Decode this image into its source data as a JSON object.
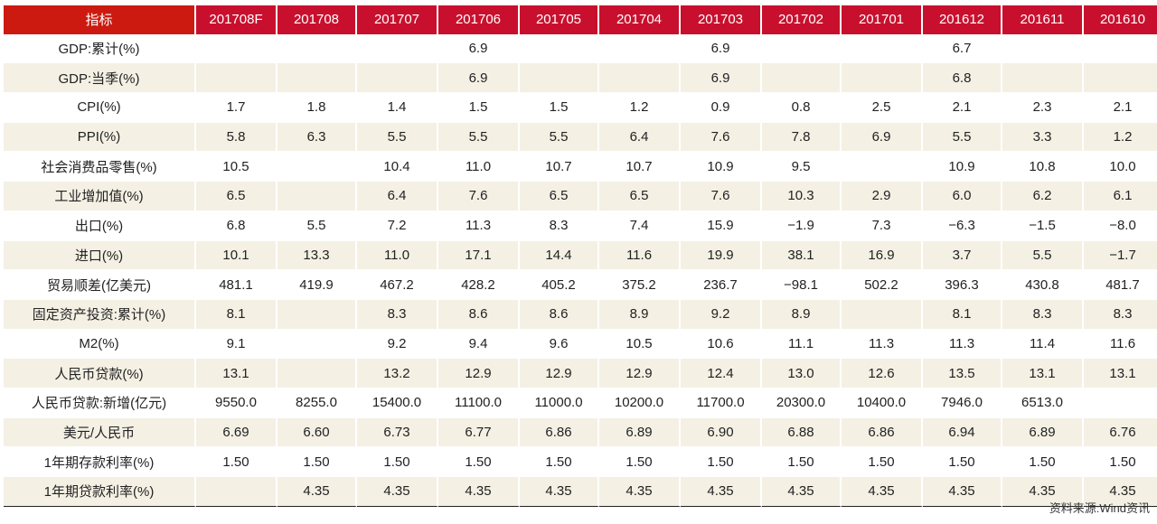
{
  "table": {
    "header_label": "指标",
    "columns": [
      "201708F",
      "201708",
      "201707",
      "201706",
      "201705",
      "201704",
      "201703",
      "201702",
      "201701",
      "201612",
      "201611",
      "201610"
    ],
    "rows": [
      {
        "label": "GDP:累计(%)",
        "values": [
          "",
          "",
          "",
          "6.9",
          "",
          "",
          "6.9",
          "",
          "",
          "6.7",
          "",
          ""
        ]
      },
      {
        "label": "GDP:当季(%)",
        "values": [
          "",
          "",
          "",
          "6.9",
          "",
          "",
          "6.9",
          "",
          "",
          "6.8",
          "",
          ""
        ]
      },
      {
        "label": "CPI(%)",
        "values": [
          "1.7",
          "1.8",
          "1.4",
          "1.5",
          "1.5",
          "1.2",
          "0.9",
          "0.8",
          "2.5",
          "2.1",
          "2.3",
          "2.1"
        ]
      },
      {
        "label": "PPI(%)",
        "values": [
          "5.8",
          "6.3",
          "5.5",
          "5.5",
          "5.5",
          "6.4",
          "7.6",
          "7.8",
          "6.9",
          "5.5",
          "3.3",
          "1.2"
        ]
      },
      {
        "label": "社会消费品零售(%)",
        "values": [
          "10.5",
          "",
          "10.4",
          "11.0",
          "10.7",
          "10.7",
          "10.9",
          "9.5",
          "",
          "10.9",
          "10.8",
          "10.0"
        ]
      },
      {
        "label": "工业增加值(%)",
        "values": [
          "6.5",
          "",
          "6.4",
          "7.6",
          "6.5",
          "6.5",
          "7.6",
          "10.3",
          "2.9",
          "6.0",
          "6.2",
          "6.1"
        ]
      },
      {
        "label": "出口(%)",
        "values": [
          "6.8",
          "5.5",
          "7.2",
          "11.3",
          "8.3",
          "7.4",
          "15.9",
          "−1.9",
          "7.3",
          "−6.3",
          "−1.5",
          "−8.0"
        ]
      },
      {
        "label": "进口(%)",
        "values": [
          "10.1",
          "13.3",
          "11.0",
          "17.1",
          "14.4",
          "11.6",
          "19.9",
          "38.1",
          "16.9",
          "3.7",
          "5.5",
          "−1.7"
        ]
      },
      {
        "label": "贸易顺差(亿美元)",
        "values": [
          "481.1",
          "419.9",
          "467.2",
          "428.2",
          "405.2",
          "375.2",
          "236.7",
          "−98.1",
          "502.2",
          "396.3",
          "430.8",
          "481.7"
        ]
      },
      {
        "label": "固定资产投资:累计(%)",
        "values": [
          "8.1",
          "",
          "8.3",
          "8.6",
          "8.6",
          "8.9",
          "9.2",
          "8.9",
          "",
          "8.1",
          "8.3",
          "8.3"
        ]
      },
      {
        "label": "M2(%)",
        "values": [
          "9.1",
          "",
          "9.2",
          "9.4",
          "9.6",
          "10.5",
          "10.6",
          "11.1",
          "11.3",
          "11.3",
          "11.4",
          "11.6"
        ]
      },
      {
        "label": "人民币贷款(%)",
        "values": [
          "13.1",
          "",
          "13.2",
          "12.9",
          "12.9",
          "12.9",
          "12.4",
          "13.0",
          "12.6",
          "13.5",
          "13.1",
          "13.1"
        ]
      },
      {
        "label": "人民币贷款:新增(亿元)",
        "values": [
          "9550.0",
          "8255.0",
          "15400.0",
          "11100.0",
          "11000.0",
          "10200.0",
          "11700.0",
          "20300.0",
          "10400.0",
          "7946.0",
          "6513.0",
          ""
        ]
      },
      {
        "label": "美元/人民币",
        "values": [
          "6.69",
          "6.60",
          "6.73",
          "6.77",
          "6.86",
          "6.89",
          "6.90",
          "6.88",
          "6.86",
          "6.94",
          "6.89",
          "6.76"
        ]
      },
      {
        "label": "1年期存款利率(%)",
        "values": [
          "1.50",
          "1.50",
          "1.50",
          "1.50",
          "1.50",
          "1.50",
          "1.50",
          "1.50",
          "1.50",
          "1.50",
          "1.50",
          "1.50"
        ]
      },
      {
        "label": "1年期贷款利率(%)",
        "values": [
          "",
          "4.35",
          "4.35",
          "4.35",
          "4.35",
          "4.35",
          "4.35",
          "4.35",
          "4.35",
          "4.35",
          "4.35",
          "4.35"
        ]
      }
    ]
  },
  "source_note": "资料来源:Wind资讯",
  "colors": {
    "header_bg": "#c8102e",
    "stripe": "#f4f0e4",
    "header_text": "#ffffff"
  }
}
